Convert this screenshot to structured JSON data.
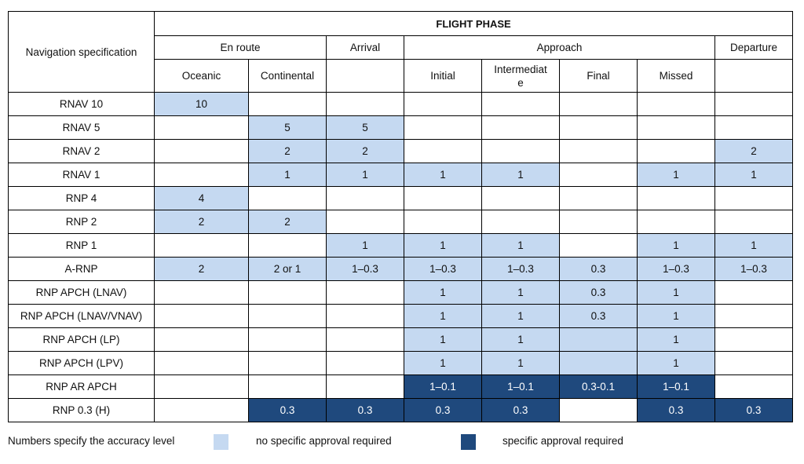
{
  "table": {
    "corner_label": "Navigation specification",
    "flight_phase_label": "FLIGHT PHASE",
    "groups": [
      "En route",
      "Arrival",
      "Approach",
      "Departure"
    ],
    "columns": [
      "Oceanic",
      "Continental",
      "",
      "Initial",
      "Intermediat\ne",
      "Final",
      "Missed",
      ""
    ],
    "rows": [
      {
        "name": "RNAV 10",
        "cells": [
          {
            "v": "10",
            "c": "light"
          },
          {
            "v": "",
            "c": ""
          },
          {
            "v": "",
            "c": ""
          },
          {
            "v": "",
            "c": ""
          },
          {
            "v": "",
            "c": ""
          },
          {
            "v": "",
            "c": ""
          },
          {
            "v": "",
            "c": ""
          },
          {
            "v": "",
            "c": ""
          }
        ]
      },
      {
        "name": "RNAV 5",
        "cells": [
          {
            "v": "",
            "c": ""
          },
          {
            "v": "5",
            "c": "light"
          },
          {
            "v": "5",
            "c": "light"
          },
          {
            "v": "",
            "c": ""
          },
          {
            "v": "",
            "c": ""
          },
          {
            "v": "",
            "c": ""
          },
          {
            "v": "",
            "c": ""
          },
          {
            "v": "",
            "c": ""
          }
        ]
      },
      {
        "name": "RNAV 2",
        "cells": [
          {
            "v": "",
            "c": ""
          },
          {
            "v": "2",
            "c": "light"
          },
          {
            "v": "2",
            "c": "light"
          },
          {
            "v": "",
            "c": ""
          },
          {
            "v": "",
            "c": ""
          },
          {
            "v": "",
            "c": ""
          },
          {
            "v": "",
            "c": ""
          },
          {
            "v": "2",
            "c": "light"
          }
        ]
      },
      {
        "name": "RNAV 1",
        "cells": [
          {
            "v": "",
            "c": ""
          },
          {
            "v": "1",
            "c": "light"
          },
          {
            "v": "1",
            "c": "light"
          },
          {
            "v": "1",
            "c": "light"
          },
          {
            "v": "1",
            "c": "light"
          },
          {
            "v": "",
            "c": ""
          },
          {
            "v": "1",
            "c": "light"
          },
          {
            "v": "1",
            "c": "light"
          }
        ]
      },
      {
        "name": "RNP 4",
        "cells": [
          {
            "v": "4",
            "c": "light"
          },
          {
            "v": "",
            "c": ""
          },
          {
            "v": "",
            "c": ""
          },
          {
            "v": "",
            "c": ""
          },
          {
            "v": "",
            "c": ""
          },
          {
            "v": "",
            "c": ""
          },
          {
            "v": "",
            "c": ""
          },
          {
            "v": "",
            "c": ""
          }
        ]
      },
      {
        "name": "RNP 2",
        "cells": [
          {
            "v": "2",
            "c": "light"
          },
          {
            "v": "2",
            "c": "light"
          },
          {
            "v": "",
            "c": ""
          },
          {
            "v": "",
            "c": ""
          },
          {
            "v": "",
            "c": ""
          },
          {
            "v": "",
            "c": ""
          },
          {
            "v": "",
            "c": ""
          },
          {
            "v": "",
            "c": ""
          }
        ]
      },
      {
        "name": "RNP 1",
        "cells": [
          {
            "v": "",
            "c": ""
          },
          {
            "v": "",
            "c": ""
          },
          {
            "v": "1",
            "c": "light"
          },
          {
            "v": "1",
            "c": "light"
          },
          {
            "v": "1",
            "c": "light"
          },
          {
            "v": "",
            "c": ""
          },
          {
            "v": "1",
            "c": "light"
          },
          {
            "v": "1",
            "c": "light"
          }
        ]
      },
      {
        "name": "A-RNP",
        "cells": [
          {
            "v": "2",
            "c": "light"
          },
          {
            "v": "2 or 1",
            "c": "light"
          },
          {
            "v": "1–0.3",
            "c": "light"
          },
          {
            "v": "1–0.3",
            "c": "light"
          },
          {
            "v": "1–0.3",
            "c": "light"
          },
          {
            "v": "0.3",
            "c": "light"
          },
          {
            "v": "1–0.3",
            "c": "light"
          },
          {
            "v": "1–0.3",
            "c": "light"
          }
        ]
      },
      {
        "name": "RNP APCH (LNAV)",
        "cells": [
          {
            "v": "",
            "c": ""
          },
          {
            "v": "",
            "c": ""
          },
          {
            "v": "",
            "c": ""
          },
          {
            "v": "1",
            "c": "light"
          },
          {
            "v": "1",
            "c": "light"
          },
          {
            "v": "0.3",
            "c": "light"
          },
          {
            "v": "1",
            "c": "light"
          },
          {
            "v": "",
            "c": ""
          }
        ]
      },
      {
        "name": "RNP APCH (LNAV/VNAV)",
        "cells": [
          {
            "v": "",
            "c": ""
          },
          {
            "v": "",
            "c": ""
          },
          {
            "v": "",
            "c": ""
          },
          {
            "v": "1",
            "c": "light"
          },
          {
            "v": "1",
            "c": "light"
          },
          {
            "v": "0.3",
            "c": "light"
          },
          {
            "v": "1",
            "c": "light"
          },
          {
            "v": "",
            "c": ""
          }
        ]
      },
      {
        "name": "RNP APCH (LP)",
        "cells": [
          {
            "v": "",
            "c": ""
          },
          {
            "v": "",
            "c": ""
          },
          {
            "v": "",
            "c": ""
          },
          {
            "v": "1",
            "c": "light"
          },
          {
            "v": "1",
            "c": "light"
          },
          {
            "v": "",
            "c": "light"
          },
          {
            "v": "1",
            "c": "light"
          },
          {
            "v": "",
            "c": ""
          }
        ]
      },
      {
        "name": "RNP APCH (LPV)",
        "cells": [
          {
            "v": "",
            "c": ""
          },
          {
            "v": "",
            "c": ""
          },
          {
            "v": "",
            "c": ""
          },
          {
            "v": "1",
            "c": "light"
          },
          {
            "v": "1",
            "c": "light"
          },
          {
            "v": "",
            "c": "light"
          },
          {
            "v": "1",
            "c": "light"
          },
          {
            "v": "",
            "c": ""
          }
        ]
      },
      {
        "name": "RNP AR APCH",
        "cells": [
          {
            "v": "",
            "c": ""
          },
          {
            "v": "",
            "c": ""
          },
          {
            "v": "",
            "c": ""
          },
          {
            "v": "1–0.1",
            "c": "dark"
          },
          {
            "v": "1–0.1",
            "c": "dark"
          },
          {
            "v": "0.3-0.1",
            "c": "dark"
          },
          {
            "v": "1–0.1",
            "c": "dark"
          },
          {
            "v": "",
            "c": ""
          }
        ]
      },
      {
        "name": "RNP 0.3 (H)",
        "cells": [
          {
            "v": "",
            "c": ""
          },
          {
            "v": "0.3",
            "c": "dark"
          },
          {
            "v": "0.3",
            "c": "dark"
          },
          {
            "v": "0.3",
            "c": "dark"
          },
          {
            "v": "0.3",
            "c": "dark"
          },
          {
            "v": "",
            "c": ""
          },
          {
            "v": "0.3",
            "c": "dark"
          },
          {
            "v": "0.3",
            "c": "dark"
          }
        ]
      }
    ]
  },
  "legend": {
    "note": "Numbers specify the accuracy level",
    "light_label": "no specific approval required",
    "dark_label": "specific approval required",
    "light_color": "#c5d9f1",
    "dark_color": "#1f497d"
  }
}
